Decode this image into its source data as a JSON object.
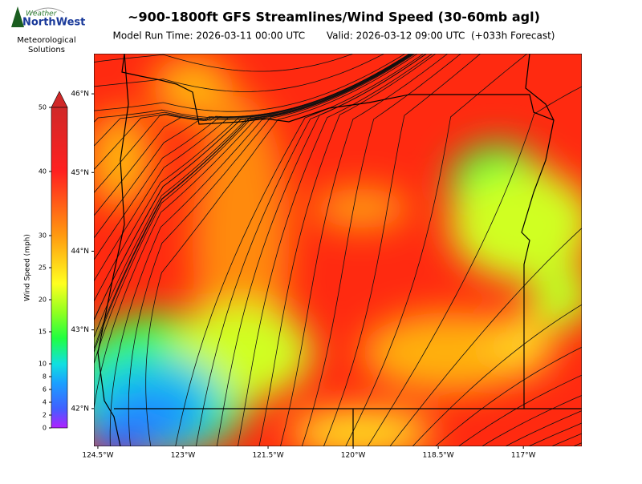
{
  "logo": {
    "line1": "Weather",
    "line2": "NorthWest",
    "caption1": "Meteorological",
    "caption2": "Solutions"
  },
  "chart_data": {
    "type": "map",
    "title": "~900-1800ft GFS Streamlines/Wind Speed (30-60mb agl)",
    "subtitle": "Model Run Time: 2026-03-11 00:00 UTC       Valid: 2026-03-12 09:00 UTC  (+033h Forecast)",
    "colorbar": {
      "label": "Wind Speed (mph)",
      "lim": [
        0,
        50
      ],
      "ticks": [
        0,
        2,
        4,
        6,
        8,
        10,
        15,
        20,
        25,
        30,
        40,
        50
      ]
    },
    "xlim": [
      -124.57,
      -115.97
    ],
    "ylim": [
      41.52,
      46.51
    ],
    "xticks": [
      {
        "value": -124.5,
        "label": "124.5°W"
      },
      {
        "value": -123,
        "label": "123°W"
      },
      {
        "value": -121.5,
        "label": "121.5°W"
      },
      {
        "value": -120,
        "label": "120°W"
      },
      {
        "value": -118.5,
        "label": "118.5°W"
      },
      {
        "value": -117,
        "label": "117°W"
      }
    ],
    "yticks": [
      {
        "value": 46,
        "label": "46°N"
      },
      {
        "value": 45,
        "label": "45°N"
      },
      {
        "value": 44,
        "label": "44°N"
      },
      {
        "value": 43,
        "label": "43°N"
      },
      {
        "value": 42,
        "label": "42°N"
      }
    ]
  }
}
